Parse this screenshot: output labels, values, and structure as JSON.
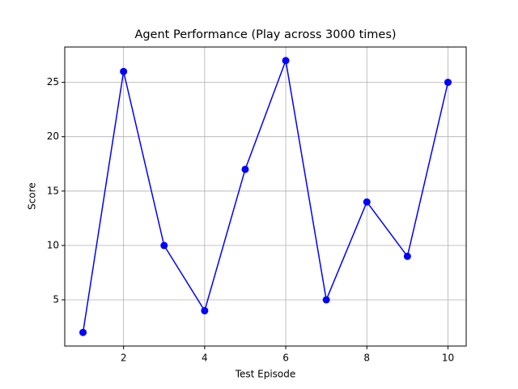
{
  "chart_data": {
    "type": "line",
    "title": "Agent Performance (Play across 3000 times)",
    "x_label": "Test Episode",
    "y_label": "Score",
    "x": [
      1,
      2,
      3,
      4,
      5,
      6,
      7,
      8,
      9,
      10
    ],
    "series": [
      {
        "color": "#0000ff",
        "values": [
          2,
          26,
          10,
          4,
          17,
          27,
          5,
          14,
          9,
          25
        ]
      }
    ],
    "xlim": [
      0.55,
      10.45
    ],
    "xticks": [
      2,
      4,
      6,
      8,
      10
    ],
    "ylim": [
      0.75,
      28.25
    ],
    "yticks": [
      5,
      10,
      15,
      20,
      25
    ],
    "grid": true,
    "markers": true
  }
}
